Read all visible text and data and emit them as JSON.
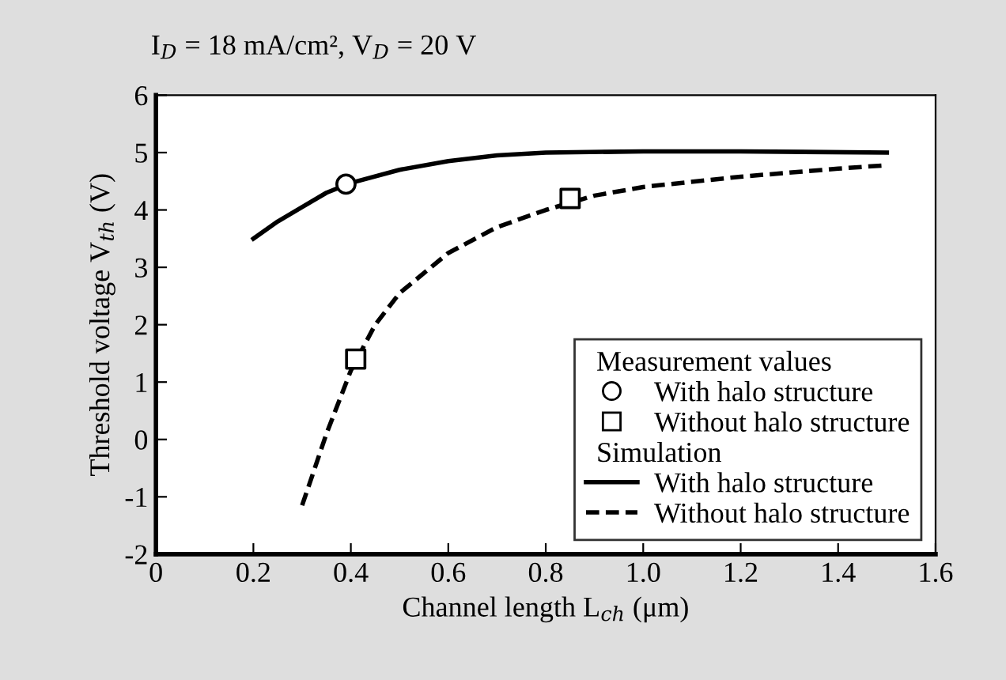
{
  "chart_data": {
    "type": "line",
    "title": "I$_{D}$ = 18 mA/cm², V$_{D}$ = 20 V",
    "xlabel": "Channel length L$_{ch}$ (μm)",
    "ylabel": "Threshold voltage V$_{th}$ (V)",
    "xlim": [
      0,
      1.6
    ],
    "xticks": [
      0,
      0.2,
      0.4,
      0.6,
      0.8,
      {
        "value": 1.0,
        "label": "1.0"
      },
      1.2,
      1.4,
      1.6
    ],
    "ylim": [
      -2,
      6
    ],
    "yticks": [
      {
        "value": -2,
        "label": "-2"
      },
      {
        "value": -1,
        "label": "-1"
      },
      0,
      1,
      2,
      3,
      4,
      5,
      6
    ],
    "grid": false,
    "legend": "bottom right",
    "annotations": [
      "Measurement values",
      "Simulation"
    ],
    "series": [
      {
        "name": "With halo structure",
        "type": "scatter",
        "marker": "circle",
        "color": "#000000",
        "x": [
          0.39
        ],
        "values": [
          4.45
        ]
      },
      {
        "name": "Without halo structure",
        "type": "scatter",
        "marker": "square",
        "color": "#000000",
        "x": [
          0.41,
          0.85
        ],
        "values": [
          1.4,
          4.2
        ]
      },
      {
        "name": "With halo structure",
        "line_style": "solid",
        "color": "#000000",
        "x": [
          0.2,
          0.25,
          0.3,
          0.35,
          0.4,
          0.5,
          0.6,
          0.7,
          0.8,
          1.0,
          1.2,
          1.5
        ],
        "values": [
          3.5,
          3.8,
          4.05,
          4.3,
          4.47,
          4.7,
          4.85,
          4.95,
          5.0,
          5.02,
          5.02,
          5.0
        ]
      },
      {
        "name": "Without halo structure",
        "line_style": "dashed",
        "color": "#000000",
        "x": [
          0.3,
          0.35,
          0.4,
          0.45,
          0.5,
          0.6,
          0.7,
          0.8,
          0.9,
          1.0,
          1.2,
          1.4,
          1.5
        ],
        "values": [
          -1.15,
          0.1,
          1.2,
          2.0,
          2.55,
          3.25,
          3.7,
          4.0,
          4.25,
          4.4,
          4.58,
          4.72,
          4.78
        ]
      }
    ]
  }
}
